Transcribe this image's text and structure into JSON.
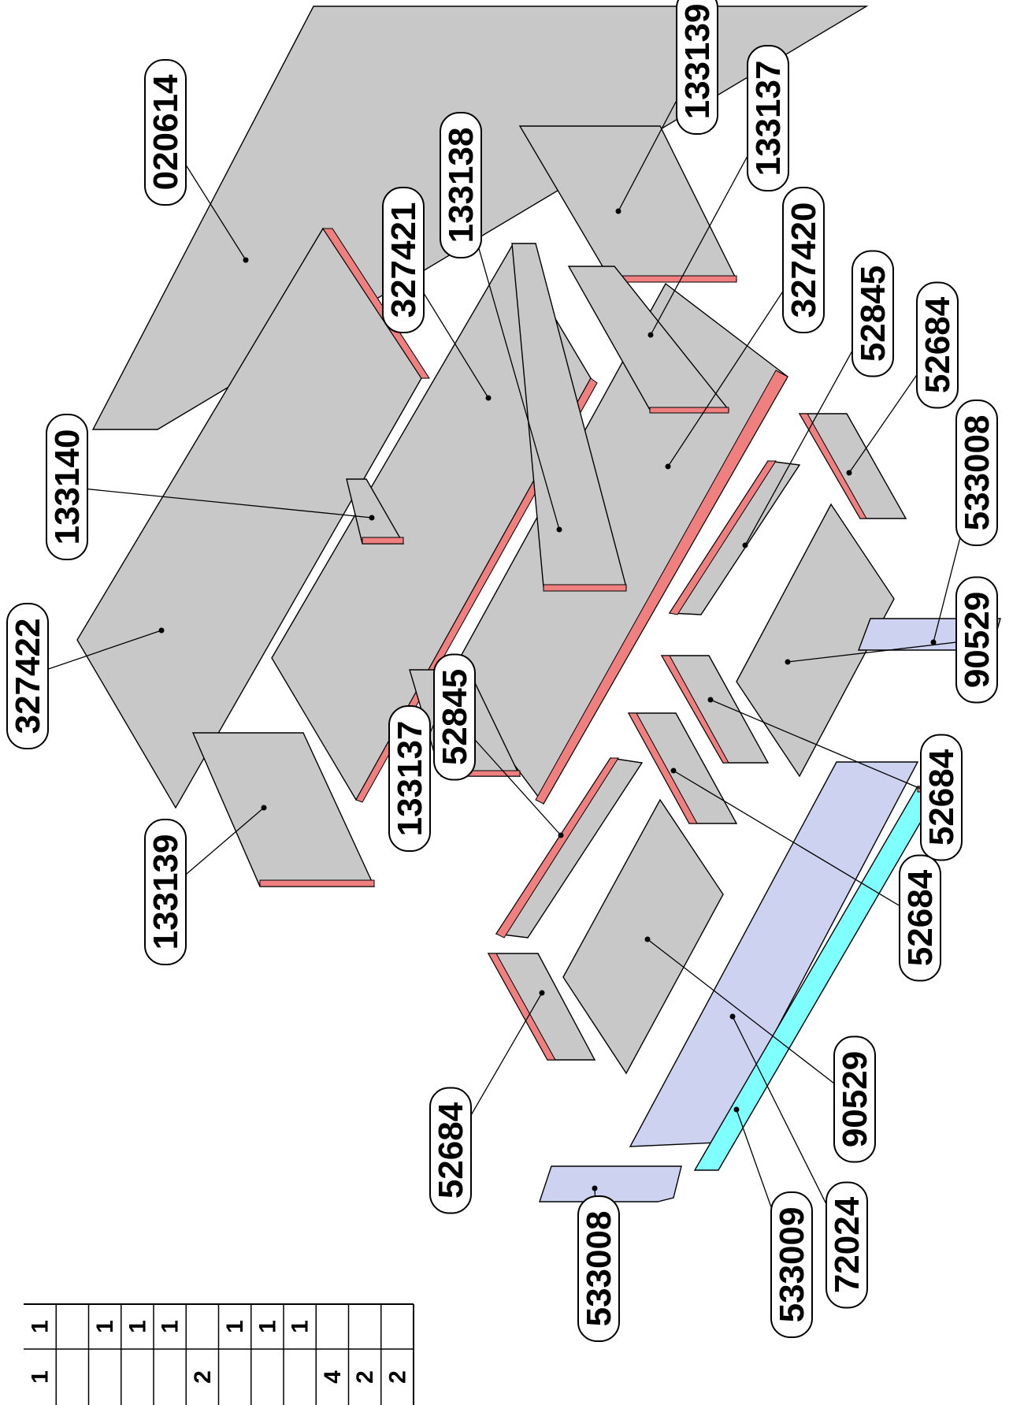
{
  "colors": {
    "panel": "#c8c8c8",
    "edge_band": "#f08080",
    "blue_part": "#ccd2f0",
    "cyan_part": "#80ffff",
    "outline": "#000000"
  },
  "parts": [
    {
      "id": "top-panel",
      "label": "020614",
      "color": "panel"
    },
    {
      "id": "large-panel-1",
      "label": "327422",
      "color": "panel"
    },
    {
      "id": "large-panel-2",
      "label": "327421",
      "color": "panel"
    },
    {
      "id": "large-panel-3",
      "label": "327420",
      "color": "panel"
    },
    {
      "id": "side-panel-133139-top",
      "label": "133139",
      "color": "panel"
    },
    {
      "id": "side-panel-133137-top",
      "label": "133137",
      "color": "panel"
    },
    {
      "id": "side-panel-133138",
      "label": "133138",
      "color": "panel"
    },
    {
      "id": "small-panel-133140",
      "label": "133140",
      "color": "panel"
    },
    {
      "id": "side-panel-133139-bottom",
      "label": "133139",
      "color": "panel"
    },
    {
      "id": "side-panel-133137-bottom",
      "label": "133137",
      "color": "panel"
    },
    {
      "id": "rail-52845-right",
      "label": "52845",
      "color": "panel"
    },
    {
      "id": "rail-52845-left",
      "label": "52845",
      "color": "panel"
    },
    {
      "id": "rail-52684-a",
      "label": "52684",
      "color": "panel"
    },
    {
      "id": "rail-52684-b",
      "label": "52684",
      "color": "panel"
    },
    {
      "id": "rail-52684-c",
      "label": "52684",
      "color": "panel"
    },
    {
      "id": "rail-52684-d",
      "label": "52684",
      "color": "panel"
    },
    {
      "id": "base-panel-90529-right",
      "label": "90529",
      "color": "panel"
    },
    {
      "id": "base-panel-90529-left",
      "label": "90529",
      "color": "panel"
    },
    {
      "id": "end-cap-533008-right",
      "label": "533008",
      "color": "blue_part"
    },
    {
      "id": "end-cap-533008-left",
      "label": "533008",
      "color": "blue_part"
    },
    {
      "id": "plinth-72024",
      "label": "72024",
      "color": "blue_part"
    },
    {
      "id": "strip-533009",
      "label": "533009",
      "color": "cyan_part"
    }
  ],
  "table": {
    "rows": [
      {
        "qty_a": "1",
        "qty_b": "1"
      },
      {
        "qty_a": "",
        "qty_b": ""
      },
      {
        "qty_a": "",
        "qty_b": "1"
      },
      {
        "qty_a": "",
        "qty_b": "1"
      },
      {
        "qty_a": "",
        "qty_b": "1"
      },
      {
        "qty_a": "2",
        "qty_b": ""
      },
      {
        "qty_a": "",
        "qty_b": "1"
      },
      {
        "qty_a": "",
        "qty_b": "1"
      },
      {
        "qty_a": "",
        "qty_b": "1"
      },
      {
        "qty_a": "4",
        "qty_b": ""
      },
      {
        "qty_a": "2",
        "qty_b": ""
      },
      {
        "qty_a": "2",
        "qty_b": ""
      }
    ]
  }
}
